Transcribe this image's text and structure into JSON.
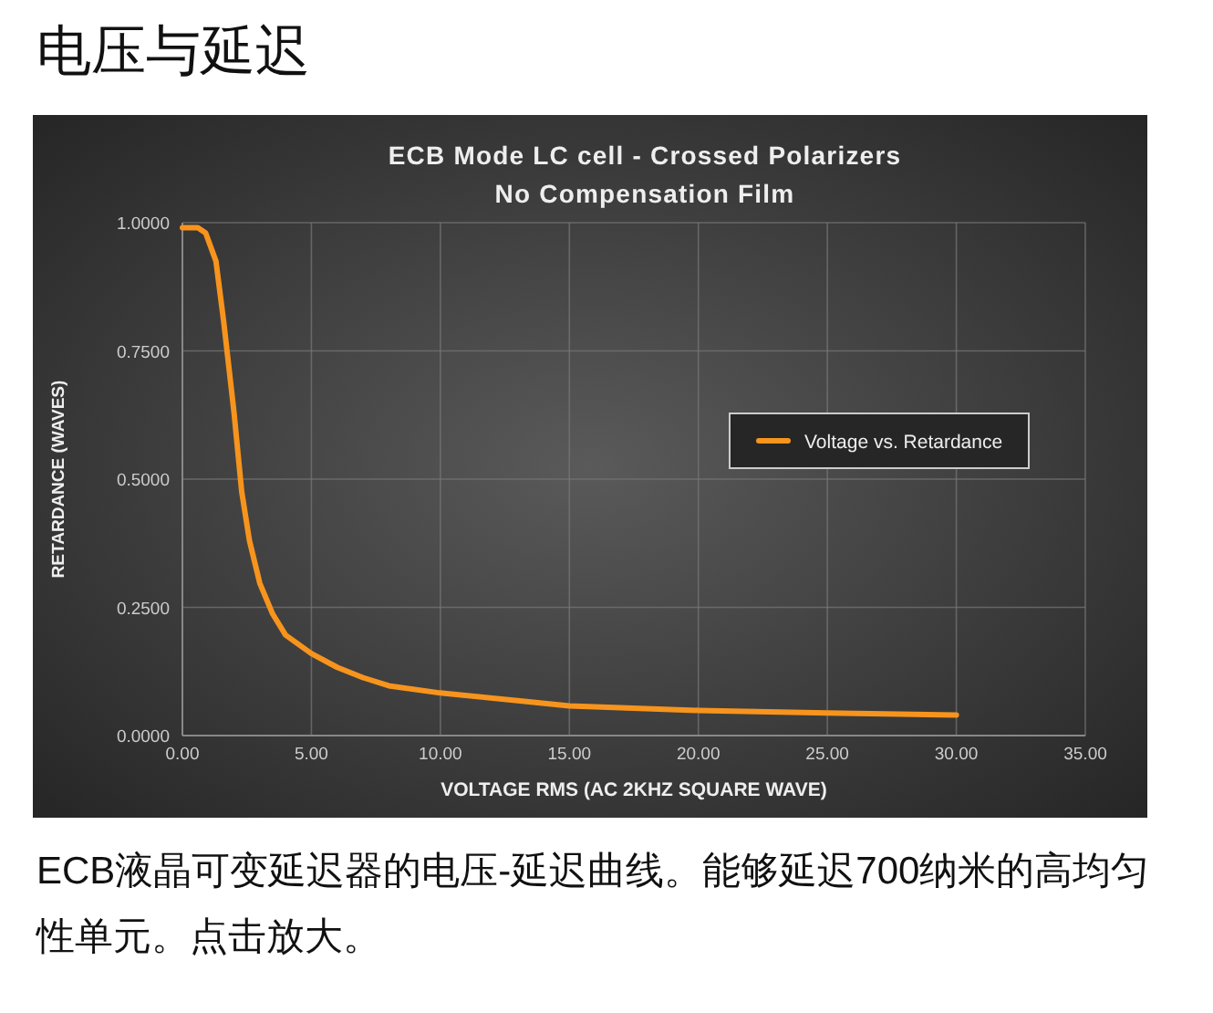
{
  "chart_data": {
    "type": "line",
    "title": "ECB Mode LC cell - Crossed Polarizers",
    "subtitle": "No Compensation Film",
    "xlabel": "VOLTAGE  RMS (AC 2KHZ SQUARE WAVE)",
    "ylabel": "RETARDANCE  (WAVES)",
    "annotations": [
      "电压与延迟",
      "ECB液晶可变延迟器的电压-延迟曲线。能够延迟700纳米的高均匀性单元。点击放大。"
    ],
    "x": [
      0,
      0.6,
      0.9,
      1.3,
      1.6,
      2.0,
      2.3,
      2.6,
      3.0,
      3.5,
      4.0,
      5.0,
      6.0,
      7.0,
      8.0,
      10.0,
      13.0,
      15.0,
      20.0,
      25.0,
      30.0
    ],
    "series": [
      {
        "name": "Voltage vs. Retardance",
        "color": "#f7941d",
        "values": [
          0.99,
          0.99,
          0.98,
          0.925,
          0.807,
          0.63,
          0.475,
          0.38,
          0.297,
          0.237,
          0.196,
          0.16,
          0.133,
          0.113,
          0.097,
          0.083,
          0.068,
          0.058,
          0.049,
          0.044,
          0.04
        ]
      }
    ],
    "xlim": [
      0,
      35
    ],
    "ylim": [
      0,
      1
    ],
    "xticks": [
      {
        "value": 0,
        "label": "0.00"
      },
      {
        "value": 5,
        "label": "5.00"
      },
      {
        "value": 10,
        "label": "10.00"
      },
      {
        "value": 15,
        "label": "15.00"
      },
      {
        "value": 20,
        "label": "20.00"
      },
      {
        "value": 25,
        "label": "25.00"
      },
      {
        "value": 30,
        "label": "30.00"
      },
      {
        "value": 35,
        "label": "35.00"
      }
    ],
    "yticks": [
      {
        "value": 0,
        "label": "0.0000"
      },
      {
        "value": 0.25,
        "label": "0.2500"
      },
      {
        "value": 0.5,
        "label": "0.5000"
      },
      {
        "value": 0.75,
        "label": "0.7500"
      },
      {
        "value": 1,
        "label": "1.0000"
      }
    ],
    "grid": true,
    "legend": "right",
    "marker": "none",
    "line_style": "solid"
  }
}
